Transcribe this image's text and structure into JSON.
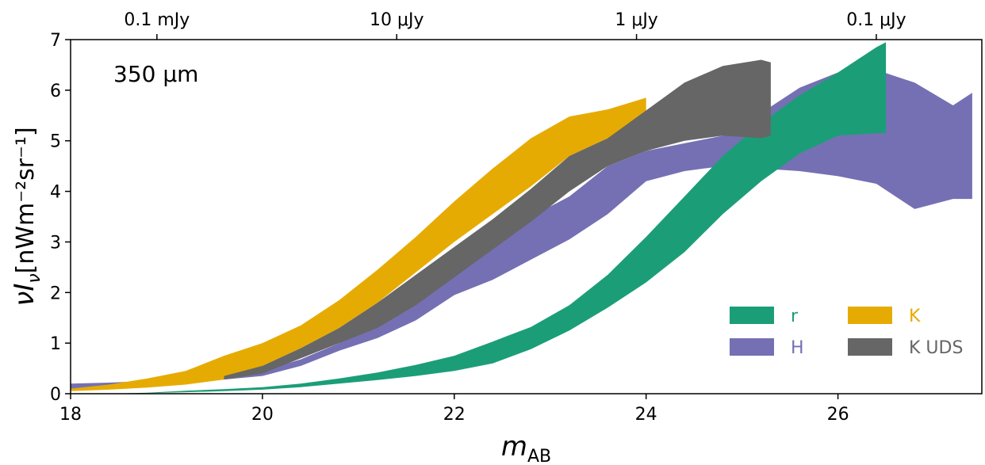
{
  "chart_data": {
    "type": "area",
    "annotation": "350 μm",
    "xlabel": "m",
    "xlabel_sub": "AB",
    "ylabel": "νI",
    "ylabel_sub": "ν",
    "ylabel_unit": "[nWm⁻²sr⁻¹]",
    "xlim": [
      18,
      27.5
    ],
    "ylim": [
      0,
      7
    ],
    "x_ticks": [
      18,
      20,
      22,
      24,
      26
    ],
    "y_ticks": [
      0,
      1,
      2,
      3,
      4,
      5,
      6,
      7
    ],
    "top_axis": {
      "ticks": [
        {
          "x": 18.9,
          "label": "0.1 mJy"
        },
        {
          "x": 21.4,
          "label": "10 μJy"
        },
        {
          "x": 23.9,
          "label": "1 μJy"
        },
        {
          "x": 26.4,
          "label": "0.1 μJy"
        }
      ]
    },
    "legend_position": "lower-right",
    "series": [
      {
        "name": "H",
        "color": "#7570b3",
        "x": [
          18.0,
          18.4,
          18.8,
          19.2,
          19.6,
          20.0,
          20.4,
          20.8,
          21.2,
          21.6,
          22.0,
          22.4,
          22.8,
          23.2,
          23.6,
          24.0,
          24.4,
          24.8,
          25.2,
          25.6,
          26.0,
          26.4,
          26.8,
          27.2,
          27.4
        ],
        "lower": [
          0.1,
          0.12,
          0.15,
          0.2,
          0.28,
          0.35,
          0.55,
          0.85,
          1.1,
          1.45,
          1.95,
          2.25,
          2.65,
          3.05,
          3.55,
          4.2,
          4.4,
          4.5,
          4.45,
          4.4,
          4.3,
          4.15,
          3.65,
          3.85,
          3.85
        ],
        "upper": [
          0.2,
          0.22,
          0.25,
          0.28,
          0.32,
          0.45,
          0.68,
          1.0,
          1.45,
          1.95,
          2.55,
          3.05,
          3.5,
          3.9,
          4.5,
          4.8,
          4.95,
          5.1,
          5.55,
          6.05,
          6.35,
          6.4,
          6.15,
          5.7,
          5.95
        ]
      },
      {
        "name": "r",
        "color": "#1b9e77",
        "x": [
          18.4,
          18.8,
          19.2,
          19.6,
          20.0,
          20.4,
          20.8,
          21.2,
          21.6,
          22.0,
          22.4,
          22.8,
          23.2,
          23.6,
          24.0,
          24.4,
          24.8,
          25.2,
          25.6,
          26.0,
          26.4,
          26.5
        ],
        "lower": [
          0.0,
          0.01,
          0.03,
          0.05,
          0.08,
          0.13,
          0.2,
          0.27,
          0.35,
          0.45,
          0.6,
          0.88,
          1.25,
          1.7,
          2.2,
          2.8,
          3.55,
          4.2,
          4.75,
          5.1,
          5.15,
          5.15
        ],
        "upper": [
          0.0,
          0.02,
          0.06,
          0.09,
          0.13,
          0.2,
          0.3,
          0.42,
          0.57,
          0.75,
          1.03,
          1.32,
          1.75,
          2.35,
          3.1,
          3.9,
          4.7,
          5.35,
          5.9,
          6.35,
          6.85,
          6.95
        ]
      },
      {
        "name": "K",
        "color": "#e6ab02",
        "x": [
          18.0,
          18.4,
          18.8,
          19.2,
          19.6,
          20.0,
          20.4,
          20.8,
          21.2,
          21.6,
          22.0,
          22.4,
          22.8,
          23.2,
          23.6,
          24.0
        ],
        "lower": [
          0.05,
          0.08,
          0.12,
          0.18,
          0.28,
          0.55,
          0.9,
          1.3,
          1.8,
          2.4,
          3.0,
          3.55,
          4.1,
          4.7,
          5.05,
          5.05
        ],
        "upper": [
          0.1,
          0.18,
          0.3,
          0.45,
          0.75,
          1.0,
          1.35,
          1.85,
          2.45,
          3.1,
          3.8,
          4.45,
          5.05,
          5.48,
          5.62,
          5.85
        ]
      },
      {
        "name": "K UDS",
        "color": "#666666",
        "x": [
          19.6,
          20.0,
          20.4,
          20.8,
          21.2,
          21.6,
          22.0,
          22.4,
          22.8,
          23.2,
          23.6,
          24.0,
          24.4,
          24.8,
          25.2,
          25.3
        ],
        "lower": [
          0.28,
          0.4,
          0.7,
          1.0,
          1.3,
          1.75,
          2.3,
          2.85,
          3.4,
          4.0,
          4.5,
          4.8,
          5.0,
          5.1,
          5.05,
          5.1
        ],
        "upper": [
          0.35,
          0.55,
          0.9,
          1.3,
          1.8,
          2.35,
          2.9,
          3.45,
          4.05,
          4.7,
          5.05,
          5.6,
          6.15,
          6.48,
          6.6,
          6.55
        ]
      }
    ],
    "legend": [
      {
        "name": "r",
        "color": "#1b9e77"
      },
      {
        "name": "K",
        "color": "#e6ab02"
      },
      {
        "name": "H",
        "color": "#7570b3"
      },
      {
        "name": "K UDS",
        "color": "#666666"
      }
    ]
  }
}
